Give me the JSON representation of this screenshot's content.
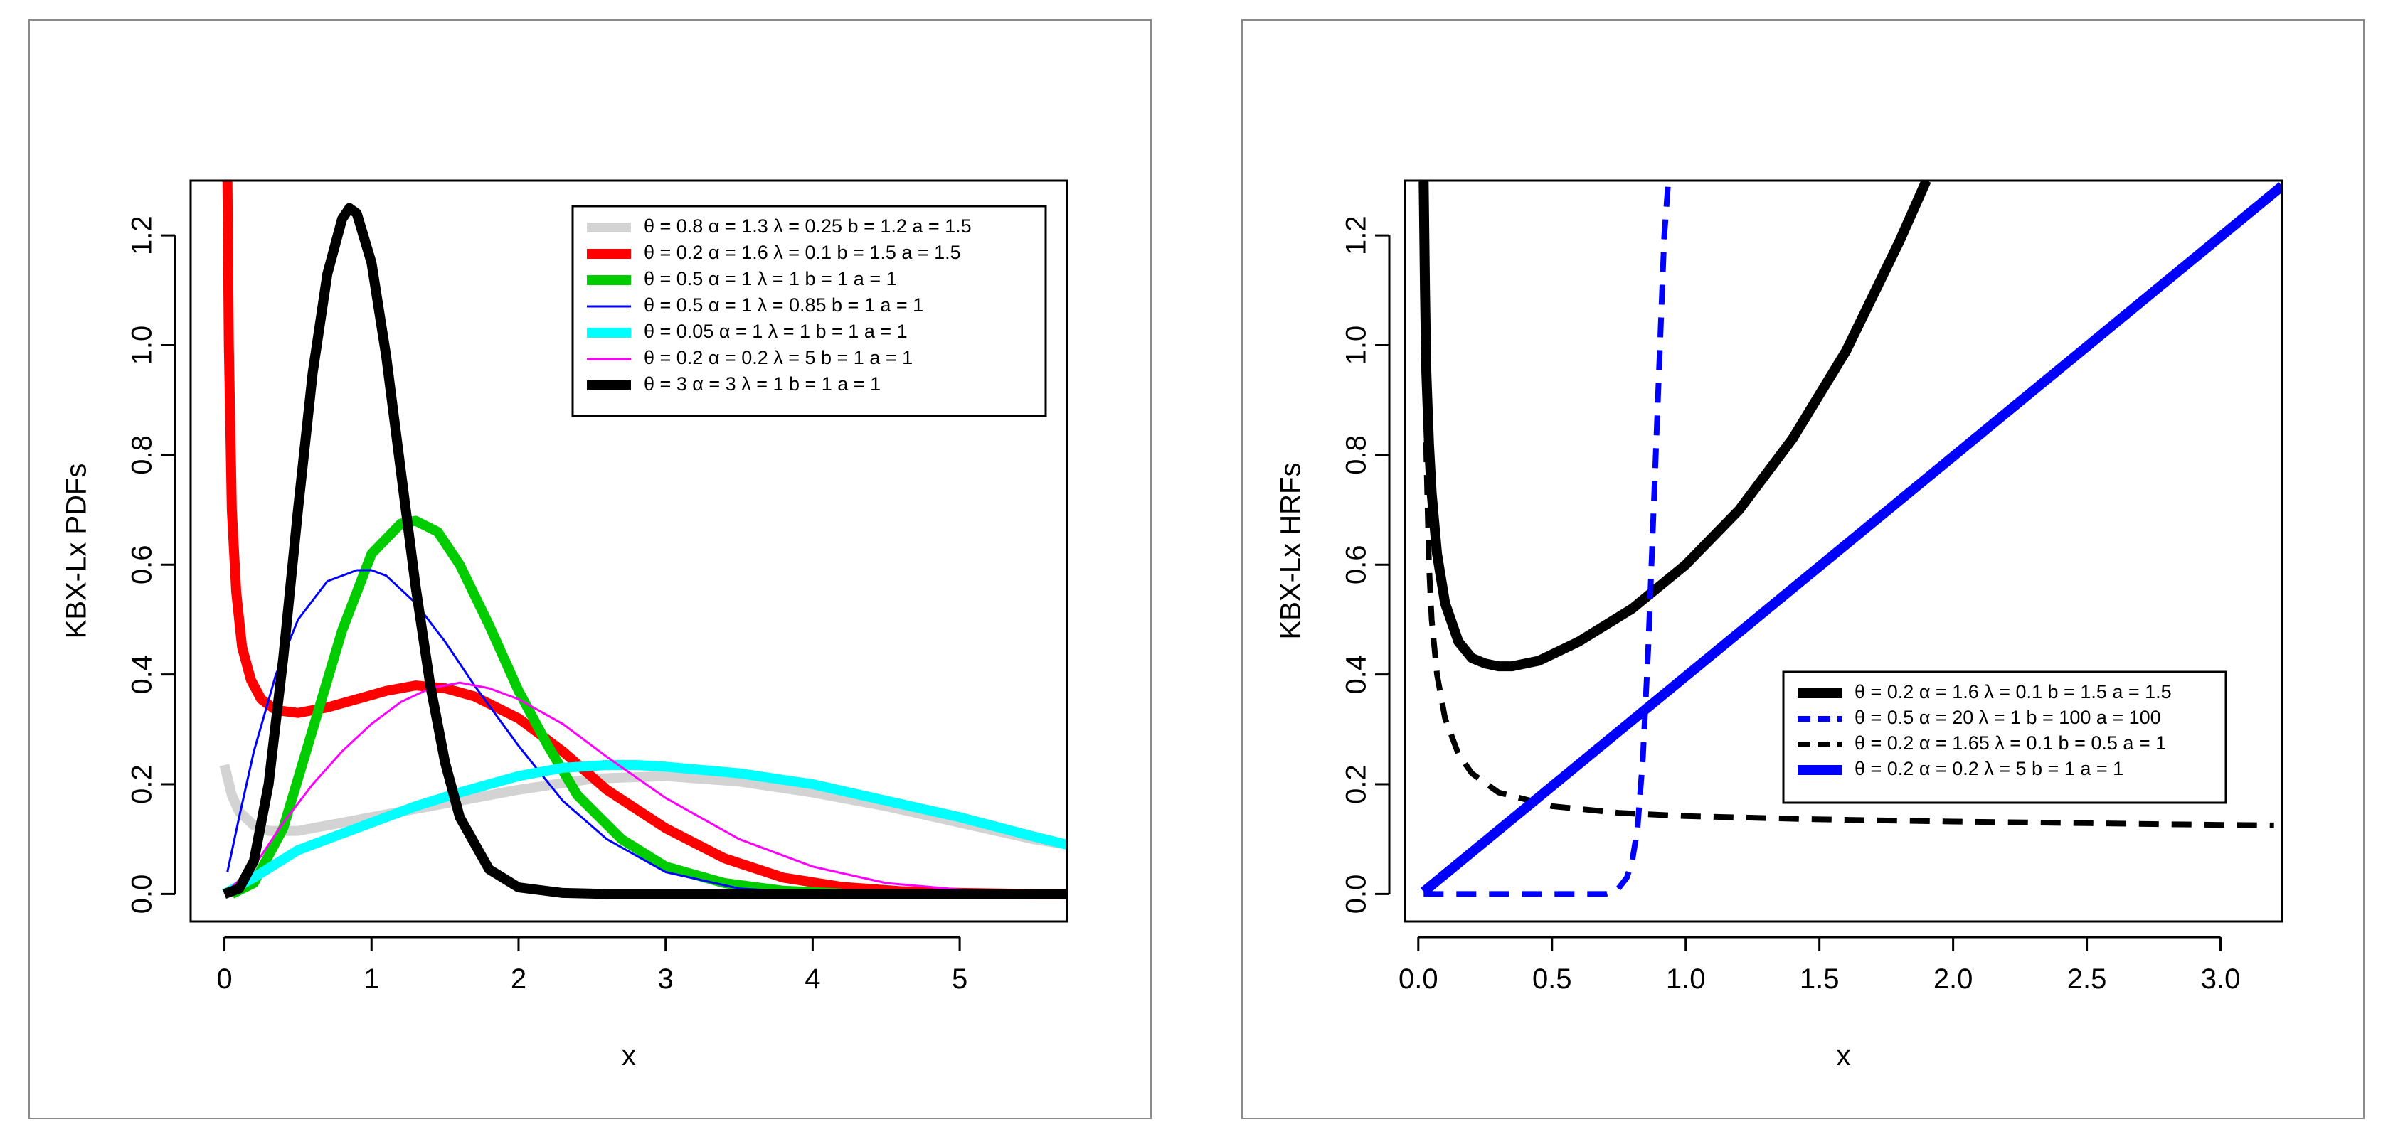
{
  "chart_data": [
    {
      "type": "line",
      "title": "",
      "xlabel": "x",
      "ylabel": "KBX-Lx PDFs",
      "xlim": [
        -0.23,
        5.73
      ],
      "ylim": [
        -0.05,
        1.3
      ],
      "xticks": [
        0,
        1,
        2,
        3,
        4,
        5
      ],
      "yticks": [
        0.0,
        0.2,
        0.4,
        0.6,
        0.8,
        1.0,
        1.2
      ],
      "xtick_labels": [
        "0",
        "1",
        "2",
        "3",
        "4",
        "5"
      ],
      "ytick_labels": [
        "0.0",
        "0.2",
        "0.4",
        "0.6",
        "0.8",
        "1.0",
        "1.2"
      ],
      "legend_position": "top-right",
      "series": [
        {
          "name": "θ = 0.8  α = 1.3  λ = 0.25  b = 1.2  a = 1.5",
          "color": "#d3d3d3",
          "width": "thick",
          "dash": "solid",
          "x": [
            0.0,
            0.05,
            0.1,
            0.2,
            0.3,
            0.5,
            0.8,
            1.0,
            1.3,
            1.6,
            2.0,
            2.5,
            3.0,
            3.5,
            4.0,
            4.5,
            5.0,
            5.5,
            5.73
          ],
          "y": [
            0.235,
            0.18,
            0.15,
            0.125,
            0.115,
            0.115,
            0.13,
            0.14,
            0.155,
            0.17,
            0.19,
            0.21,
            0.215,
            0.205,
            0.185,
            0.16,
            0.13,
            0.1,
            0.09
          ]
        },
        {
          "name": "θ = 0.2  α = 1.6  λ = 0.1  b = 1.5  a = 1.5",
          "color": "#ff0000",
          "width": "thick",
          "dash": "solid",
          "x": [
            0.02,
            0.03,
            0.05,
            0.08,
            0.12,
            0.18,
            0.25,
            0.35,
            0.5,
            0.7,
            0.9,
            1.1,
            1.3,
            1.5,
            1.7,
            2.0,
            2.3,
            2.6,
            3.0,
            3.4,
            3.8,
            4.2,
            4.6,
            5.0,
            5.5,
            5.73
          ],
          "y": [
            1.3,
            1.0,
            0.7,
            0.55,
            0.45,
            0.39,
            0.355,
            0.335,
            0.33,
            0.34,
            0.355,
            0.37,
            0.38,
            0.375,
            0.36,
            0.32,
            0.26,
            0.19,
            0.12,
            0.065,
            0.03,
            0.013,
            0.005,
            0.002,
            0.0,
            0.0
          ]
        },
        {
          "name": "θ = 0.5  α = 1  λ = 1  b = 1  a = 1",
          "color": "#00cc00",
          "width": "thick",
          "dash": "solid",
          "x": [
            0.05,
            0.2,
            0.4,
            0.6,
            0.8,
            1.0,
            1.2,
            1.3,
            1.45,
            1.6,
            1.8,
            2.0,
            2.2,
            2.4,
            2.7,
            3.0,
            3.4,
            3.8,
            4.2
          ],
          "y": [
            0.0,
            0.02,
            0.12,
            0.3,
            0.48,
            0.62,
            0.675,
            0.68,
            0.66,
            0.6,
            0.49,
            0.37,
            0.27,
            0.18,
            0.1,
            0.05,
            0.02,
            0.006,
            0.001
          ]
        },
        {
          "name": "θ = 0.5  α = 1  λ = 0.85  b = 1  a = 1",
          "color": "#0000ff",
          "width": "thin",
          "dash": "solid",
          "x": [
            0.02,
            0.1,
            0.2,
            0.35,
            0.5,
            0.7,
            0.9,
            1.0,
            1.1,
            1.3,
            1.5,
            1.7,
            2.0,
            2.3,
            2.6,
            3.0,
            3.5,
            4.0
          ],
          "y": [
            0.04,
            0.14,
            0.26,
            0.4,
            0.5,
            0.57,
            0.59,
            0.59,
            0.58,
            0.53,
            0.46,
            0.38,
            0.27,
            0.17,
            0.1,
            0.04,
            0.01,
            0.002
          ]
        },
        {
          "name": "θ = 0.05  α = 1  λ = 1  b = 1  a = 1",
          "color": "#00ffff",
          "width": "thick",
          "dash": "solid",
          "x": [
            0.0,
            0.2,
            0.5,
            0.8,
            1.0,
            1.3,
            1.6,
            2.0,
            2.3,
            2.6,
            2.8,
            3.0,
            3.5,
            4.0,
            4.5,
            5.0,
            5.5,
            5.73
          ],
          "y": [
            0.0,
            0.03,
            0.08,
            0.11,
            0.13,
            0.16,
            0.185,
            0.215,
            0.23,
            0.235,
            0.235,
            0.232,
            0.22,
            0.2,
            0.17,
            0.14,
            0.105,
            0.09
          ]
        },
        {
          "name": "θ = 0.2  α = 0.2  λ = 5  b = 1  a = 1",
          "color": "#ff00ff",
          "width": "thin",
          "dash": "solid",
          "x": [
            0.0,
            0.2,
            0.4,
            0.6,
            0.8,
            1.0,
            1.2,
            1.4,
            1.6,
            1.8,
            2.0,
            2.3,
            2.6,
            3.0,
            3.5,
            4.0,
            4.5,
            5.0,
            5.5,
            5.73
          ],
          "y": [
            0.0,
            0.05,
            0.13,
            0.2,
            0.26,
            0.31,
            0.35,
            0.375,
            0.385,
            0.375,
            0.355,
            0.31,
            0.25,
            0.175,
            0.1,
            0.05,
            0.02,
            0.008,
            0.002,
            0.001
          ]
        },
        {
          "name": "θ = 3  α = 3  λ = 1  b = 1  a = 1",
          "color": "#000000",
          "width": "thick",
          "dash": "solid",
          "x": [
            0.0,
            0.1,
            0.2,
            0.3,
            0.4,
            0.5,
            0.6,
            0.7,
            0.8,
            0.85,
            0.9,
            1.0,
            1.1,
            1.2,
            1.3,
            1.4,
            1.5,
            1.6,
            1.8,
            2.0,
            2.3,
            2.6,
            3.0,
            4.0,
            5.0,
            5.73
          ],
          "y": [
            0.0,
            0.01,
            0.06,
            0.2,
            0.43,
            0.7,
            0.95,
            1.13,
            1.23,
            1.25,
            1.24,
            1.15,
            0.98,
            0.77,
            0.56,
            0.38,
            0.24,
            0.14,
            0.045,
            0.012,
            0.002,
            0.0,
            0.0,
            0.0,
            0.0,
            0.0
          ]
        }
      ]
    },
    {
      "type": "line",
      "title": "",
      "xlabel": "x",
      "ylabel": "KBX-Lx HRFs",
      "xlim": [
        -0.05,
        3.23
      ],
      "ylim": [
        -0.05,
        1.3
      ],
      "xticks": [
        0.0,
        0.5,
        1.0,
        1.5,
        2.0,
        2.5,
        3.0
      ],
      "yticks": [
        0.0,
        0.2,
        0.4,
        0.6,
        0.8,
        1.0,
        1.2
      ],
      "xtick_labels": [
        "0.0",
        "0.5",
        "1.0",
        "1.5",
        "2.0",
        "2.5",
        "3.0"
      ],
      "ytick_labels": [
        "0.0",
        "0.2",
        "0.4",
        "0.6",
        "0.8",
        "1.0",
        "1.2"
      ],
      "legend_position": "center-right",
      "series": [
        {
          "name": "θ = 0.2  α = 1.6  λ = 0.1  b = 1.5  a = 1.5",
          "color": "#000000",
          "width": "thick",
          "dash": "solid",
          "x": [
            0.02,
            0.025,
            0.03,
            0.04,
            0.05,
            0.07,
            0.1,
            0.15,
            0.2,
            0.25,
            0.3,
            0.35,
            0.45,
            0.6,
            0.8,
            1.0,
            1.2,
            1.4,
            1.6,
            1.8,
            1.9
          ],
          "y": [
            1.3,
            1.1,
            0.95,
            0.82,
            0.73,
            0.62,
            0.53,
            0.46,
            0.43,
            0.42,
            0.415,
            0.415,
            0.425,
            0.46,
            0.52,
            0.6,
            0.7,
            0.83,
            0.99,
            1.19,
            1.3
          ]
        },
        {
          "name": "θ = 0.5  α = 20  λ = 1  b = 100  a = 100",
          "color": "#0000ff",
          "width": "medium",
          "dash": "dashed",
          "x": [
            0.02,
            0.3,
            0.6,
            0.7,
            0.74,
            0.78,
            0.8,
            0.82,
            0.84,
            0.86,
            0.88,
            0.9,
            0.92,
            0.935
          ],
          "y": [
            0.0,
            0.0,
            0.0,
            0.0,
            0.005,
            0.03,
            0.06,
            0.12,
            0.25,
            0.45,
            0.7,
            0.95,
            1.2,
            1.3
          ]
        },
        {
          "name": "θ = 0.2  α = 1.65  λ = 0.1  b = 0.5  a = 1",
          "color": "#000000",
          "width": "medium",
          "dash": "dashed",
          "x": [
            0.02,
            0.025,
            0.03,
            0.04,
            0.05,
            0.07,
            0.1,
            0.15,
            0.2,
            0.3,
            0.5,
            0.75,
            1.0,
            1.5,
            2.0,
            2.5,
            3.0,
            3.2
          ],
          "y": [
            1.3,
            1.0,
            0.8,
            0.6,
            0.5,
            0.4,
            0.32,
            0.255,
            0.22,
            0.185,
            0.16,
            0.148,
            0.142,
            0.136,
            0.132,
            0.129,
            0.126,
            0.125
          ]
        },
        {
          "name": "θ = 0.2  α = 0.2  λ = 5  b = 1  a = 1",
          "color": "#0000ff",
          "width": "thick",
          "dash": "solid",
          "x": [
            0.02,
            3.23
          ],
          "y": [
            0.004,
            1.29
          ]
        }
      ]
    }
  ]
}
